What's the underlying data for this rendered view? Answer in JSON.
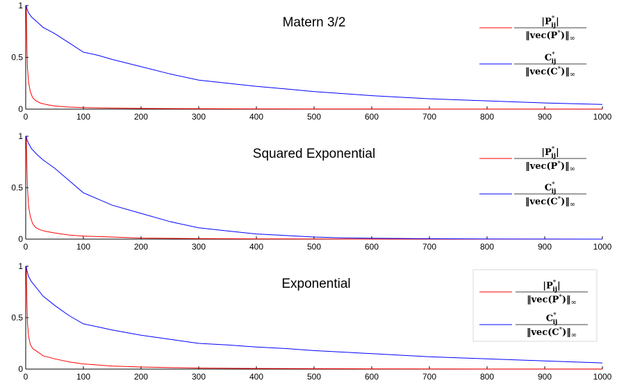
{
  "chart_data": [
    {
      "type": "line",
      "title": "Matern 3/2",
      "xlim": [
        0,
        1000
      ],
      "ylim": [
        0,
        1
      ],
      "x_ticks": [
        "0",
        "100",
        "200",
        "300",
        "400",
        "500",
        "600",
        "700",
        "800",
        "900",
        "1000"
      ],
      "y_ticks": [
        "0",
        "0.5",
        "1"
      ],
      "legend_position": "top-right",
      "legend_box": false,
      "series": [
        {
          "name": "|P*ij| / ||vec(P*)||∞",
          "color": "#ff0000",
          "x": [
            1,
            2,
            3,
            5,
            8,
            12,
            18,
            25,
            35,
            50,
            75,
            100,
            150,
            200,
            300,
            400,
            500,
            600,
            700,
            800,
            900,
            1000
          ],
          "y": [
            1.0,
            0.6,
            0.4,
            0.26,
            0.17,
            0.11,
            0.08,
            0.06,
            0.045,
            0.03,
            0.02,
            0.015,
            0.01,
            0.007,
            0.004,
            0.003,
            0.002,
            0.002,
            0.001,
            0.001,
            0.001,
            0.001
          ]
        },
        {
          "name": "C*ij / ||vec(C*)||∞",
          "color": "#0000ff",
          "x": [
            1,
            2,
            5,
            10,
            20,
            30,
            50,
            75,
            100,
            125,
            150,
            200,
            250,
            300,
            350,
            400,
            450,
            500,
            600,
            700,
            800,
            900,
            1000
          ],
          "y": [
            1.0,
            0.97,
            0.93,
            0.89,
            0.84,
            0.79,
            0.73,
            0.64,
            0.55,
            0.52,
            0.48,
            0.41,
            0.34,
            0.28,
            0.25,
            0.22,
            0.195,
            0.17,
            0.13,
            0.1,
            0.08,
            0.06,
            0.045
          ]
        }
      ]
    },
    {
      "type": "line",
      "title": "Squared Exponential",
      "xlim": [
        0,
        1000
      ],
      "ylim": [
        0,
        1
      ],
      "x_ticks": [
        "0",
        "100",
        "200",
        "300",
        "400",
        "500",
        "600",
        "700",
        "800",
        "900",
        "1000"
      ],
      "y_ticks": [
        "0",
        "0.5",
        "1"
      ],
      "legend_position": "top-right",
      "legend_box": false,
      "series": [
        {
          "name": "|P*ij| / ||vec(P*)||∞",
          "color": "#ff0000",
          "x": [
            1,
            2,
            3,
            5,
            8,
            12,
            18,
            25,
            35,
            50,
            75,
            100,
            150,
            200,
            300,
            400,
            500,
            600,
            700,
            800,
            900,
            1000
          ],
          "y": [
            1.0,
            0.7,
            0.5,
            0.32,
            0.22,
            0.15,
            0.11,
            0.09,
            0.075,
            0.06,
            0.04,
            0.03,
            0.02,
            0.01,
            0.005,
            0.003,
            0.002,
            0.001,
            0.001,
            0.0,
            0.0,
            0.0
          ]
        },
        {
          "name": "C*ij / ||vec(C*)||∞",
          "color": "#0000ff",
          "x": [
            1,
            2,
            5,
            10,
            20,
            30,
            50,
            75,
            100,
            125,
            150,
            200,
            250,
            300,
            350,
            400,
            450,
            500,
            550,
            600,
            700,
            800,
            900,
            1000
          ],
          "y": [
            1.0,
            0.97,
            0.93,
            0.88,
            0.82,
            0.77,
            0.69,
            0.57,
            0.45,
            0.39,
            0.33,
            0.25,
            0.17,
            0.11,
            0.08,
            0.05,
            0.035,
            0.02,
            0.012,
            0.008,
            0.004,
            0.002,
            0.001,
            0.0
          ]
        }
      ]
    },
    {
      "type": "line",
      "title": "Exponential",
      "xlim": [
        0,
        1000
      ],
      "ylim": [
        0,
        1
      ],
      "x_ticks": [
        "0",
        "100",
        "200",
        "300",
        "400",
        "500",
        "600",
        "700",
        "800",
        "900",
        "1000"
      ],
      "y_ticks": [
        "0",
        "0.5",
        "1"
      ],
      "legend_position": "top-right",
      "legend_box": true,
      "series": [
        {
          "name": "|P*ij| / ||vec(P*)||∞",
          "color": "#ff0000",
          "x": [
            1,
            2,
            3,
            5,
            8,
            12,
            20,
            30,
            50,
            75,
            100,
            150,
            200,
            300,
            400,
            500,
            600,
            700,
            800,
            900,
            1000
          ],
          "y": [
            1.0,
            0.65,
            0.45,
            0.32,
            0.24,
            0.2,
            0.17,
            0.13,
            0.1,
            0.07,
            0.05,
            0.03,
            0.02,
            0.01,
            0.006,
            0.004,
            0.003,
            0.002,
            0.001,
            0.001,
            0.001
          ]
        },
        {
          "name": "C*ij / ||vec(C*)||∞",
          "color": "#0000ff",
          "x": [
            1,
            2,
            5,
            10,
            20,
            30,
            50,
            75,
            100,
            125,
            150,
            200,
            250,
            300,
            350,
            400,
            450,
            500,
            600,
            700,
            800,
            900,
            1000
          ],
          "y": [
            1.0,
            0.96,
            0.9,
            0.85,
            0.78,
            0.71,
            0.62,
            0.52,
            0.44,
            0.41,
            0.38,
            0.33,
            0.29,
            0.25,
            0.235,
            0.215,
            0.2,
            0.18,
            0.15,
            0.12,
            0.1,
            0.08,
            0.06
          ]
        }
      ]
    }
  ]
}
